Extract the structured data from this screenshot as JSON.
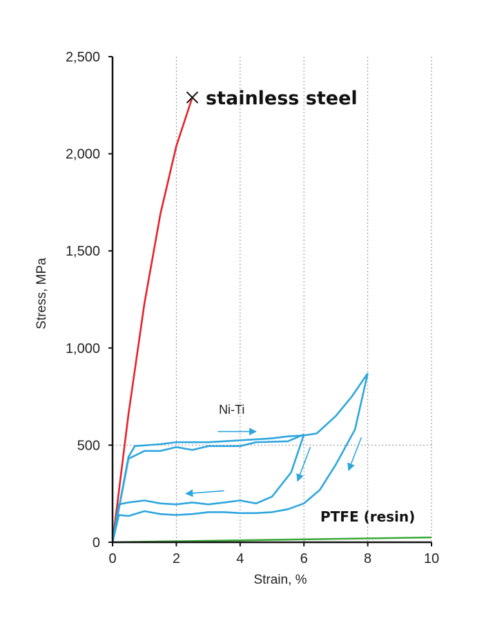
{
  "chart_data": {
    "type": "line",
    "xlabel": "Strain, %",
    "ylabel": "Stress, MPa",
    "xlim": [
      0,
      10
    ],
    "ylim": [
      0,
      2500
    ],
    "x_ticks": [
      {
        "value": 0,
        "label": "0"
      },
      {
        "value": 2,
        "label": "2"
      },
      {
        "value": 4,
        "label": "4"
      },
      {
        "value": 6,
        "label": "6"
      },
      {
        "value": 8,
        "label": "8"
      },
      {
        "value": 10,
        "label": "10"
      }
    ],
    "y_ticks": [
      {
        "value": 0,
        "label": "0"
      },
      {
        "value": 500,
        "label": "500"
      },
      {
        "value": 1000,
        "label": "1,000"
      },
      {
        "value": 1500,
        "label": "1,500"
      },
      {
        "value": 2000,
        "label": "2,000"
      },
      {
        "value": 2500,
        "label": "2,500"
      }
    ],
    "grid": "dotted vertical lines at x = 2, 4, 6, 8, 10 and a dotted horizontal line at 500",
    "series": [
      {
        "name": "stainless steel",
        "color": "#e8202a",
        "end_marker": "cross",
        "x": [
          0,
          0.5,
          1.0,
          1.5,
          2.0,
          2.5
        ],
        "y": [
          0,
          660,
          1230,
          1690,
          2040,
          2290
        ]
      },
      {
        "name": "Ni-Ti",
        "color": "#2ea6dd",
        "segments": [
          {
            "x": [
              0,
              0.5,
              0.7,
              1.5,
              2.0,
              3.0,
              4.0,
              5.0,
              5.5,
              6.0,
              6.4,
              7.0,
              7.5,
              8.0
            ],
            "y": [
              0,
              440,
              495,
              505,
              515,
              515,
              525,
              535,
              545,
              550,
              560,
              650,
              750,
              870
            ]
          },
          {
            "x": [
              8.0,
              7.6,
              7.0,
              6.5,
              6.0,
              5.5,
              5.0,
              4.5,
              4.0,
              3.5,
              3.0,
              2.5,
              2.0,
              1.5,
              1.0,
              0.5,
              0.2,
              0
            ],
            "y": [
              870,
              580,
              400,
              270,
              200,
              170,
              155,
              150,
              150,
              155,
              155,
              145,
              140,
              145,
              160,
              135,
              140,
              0
            ]
          },
          {
            "x": [
              0,
              0.5,
              1.0,
              1.5,
              2.0,
              2.5,
              3.0,
              4.0,
              4.5,
              5.5,
              6.0
            ],
            "y": [
              0,
              430,
              470,
              470,
              490,
              475,
              495,
              495,
              515,
              520,
              555
            ]
          },
          {
            "x": [
              6.0,
              5.6,
              5.0,
              4.5,
              4.0,
              3.5,
              3.0,
              2.5,
              2.0,
              1.5,
              1.0,
              0.5,
              0.2,
              0
            ],
            "y": [
              555,
              360,
              235,
              200,
              215,
              205,
              195,
              205,
              195,
              200,
              215,
              205,
              195,
              0
            ]
          }
        ]
      },
      {
        "name": "PTFE (resin)",
        "color": "#3aaa3a",
        "x": [
          0,
          10
        ],
        "y": [
          0,
          25
        ]
      }
    ],
    "annotations": [
      {
        "text": "stainless steel",
        "style": "large-bold"
      },
      {
        "text": "Ni-Ti",
        "style": "small"
      },
      {
        "text": "PTFE (resin)",
        "style": "medium-bold"
      }
    ],
    "arrows": [
      {
        "from": [
          3.3,
          570
        ],
        "to": [
          4.5,
          570
        ]
      },
      {
        "from": [
          3.5,
          265
        ],
        "to": [
          2.3,
          250
        ]
      },
      {
        "from": [
          6.2,
          490
        ],
        "to": [
          5.8,
          315
        ]
      },
      {
        "from": [
          7.8,
          540
        ],
        "to": [
          7.4,
          370
        ]
      }
    ]
  }
}
